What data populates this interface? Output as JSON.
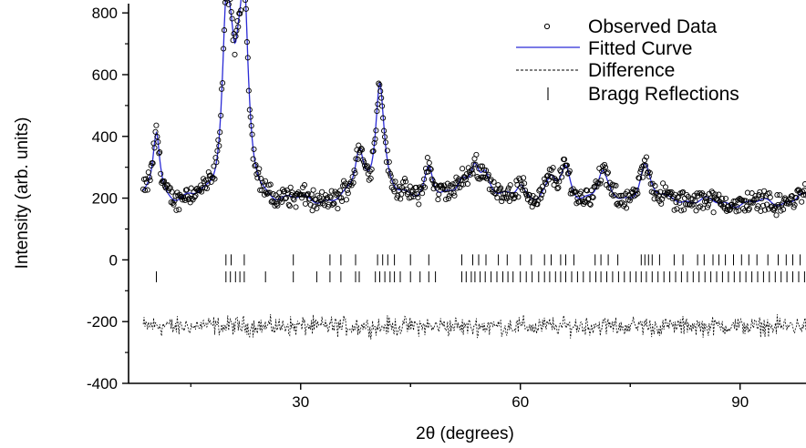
{
  "chart_data": {
    "type": "scatter",
    "xlabel": "2θ (degrees)",
    "ylabel": "Intensity (arb. units)",
    "xlim": [
      6.5,
      99
    ],
    "ylim": [
      -400,
      830
    ],
    "x_ticks": [
      30,
      60,
      90
    ],
    "x_tick_labels": [
      "30",
      "60",
      "90"
    ],
    "y_ticks": [
      -400,
      -200,
      0,
      200,
      400,
      600,
      800
    ],
    "y_tick_labels": [
      "-400",
      "-200",
      "0",
      "200",
      "400",
      "600",
      "800"
    ],
    "grid": false,
    "legend_position": "top-right",
    "legend": [
      {
        "label": "Observed Data",
        "marker": "open-circle"
      },
      {
        "label": "Fitted Curve",
        "marker": "line",
        "color": "#2b2bd6"
      },
      {
        "label": "Difference",
        "marker": "dashed-line"
      },
      {
        "label": "Bragg Reflections",
        "marker": "vertical-tick"
      }
    ],
    "pattern": {
      "x_start": 8.5,
      "x_end": 99,
      "background": 185,
      "peaks": [
        {
          "two_theta": 10.3,
          "intensity": 410
        },
        {
          "two_theta": 19.8,
          "intensity": 680
        },
        {
          "two_theta": 20.5,
          "intensity": 450
        },
        {
          "two_theta": 21.5,
          "intensity": 410
        },
        {
          "two_theta": 22.3,
          "intensity": 760
        },
        {
          "two_theta": 38.0,
          "intensity": 335
        },
        {
          "two_theta": 40.8,
          "intensity": 570
        },
        {
          "two_theta": 47.5,
          "intensity": 300
        },
        {
          "two_theta": 52.0,
          "intensity": 235
        },
        {
          "two_theta": 53.8,
          "intensity": 300
        },
        {
          "two_theta": 55.2,
          "intensity": 255
        },
        {
          "two_theta": 60.0,
          "intensity": 240
        },
        {
          "two_theta": 64.2,
          "intensity": 245
        },
        {
          "two_theta": 66.2,
          "intensity": 285
        },
        {
          "two_theta": 71.2,
          "intensity": 270
        },
        {
          "two_theta": 77.0,
          "intensity": 300
        },
        {
          "two_theta": 81.0,
          "intensity": 200
        },
        {
          "two_theta": 91.0,
          "intensity": 180
        },
        {
          "two_theta": 98.2,
          "intensity": 210
        }
      ],
      "difference_offset": -215
    },
    "bragg_reflections": [
      {
        "phase": 1,
        "y": 0,
        "positions": [
          19.8,
          20.5,
          22.3,
          29.0,
          34.0,
          35.5,
          37.5,
          40.5,
          41.2,
          41.9,
          42.8,
          45.0,
          47.5,
          52.0,
          53.5,
          54.3,
          55.3,
          57.0,
          58.2,
          60.0,
          61.5,
          63.3,
          64.2,
          65.5,
          66.2,
          67.3,
          70.2,
          71.0,
          72.0,
          73.3,
          76.5,
          77.0,
          77.5,
          78.0,
          79.0,
          81.0,
          82.2,
          84.2,
          85.1,
          86.3,
          87.1,
          88.0,
          89.1,
          90.2,
          91.2,
          92.3,
          93.8,
          95.2,
          96.3,
          97.2,
          98.2
        ]
      },
      {
        "phase": 2,
        "y": -55,
        "positions": [
          10.3,
          19.8,
          20.4,
          21.1,
          21.7,
          22.3,
          25.2,
          29.0,
          32.2,
          34.0,
          35.5,
          37.5,
          38.0,
          40.2,
          40.8,
          41.5,
          42.2,
          42.8,
          43.6,
          45.0,
          46.3,
          47.5,
          48.4,
          52.0,
          52.6,
          53.3,
          53.8,
          54.5,
          55.2,
          56.0,
          56.8,
          57.6,
          58.3,
          59.0,
          60.0,
          60.8,
          61.6,
          62.5,
          63.3,
          64.0,
          64.8,
          65.5,
          66.2,
          67.0,
          67.8,
          68.6,
          69.5,
          70.3,
          71.0,
          71.8,
          72.6,
          73.4,
          74.2,
          75.0,
          75.8,
          76.5,
          77.2,
          78.0,
          78.8,
          79.6,
          80.4,
          81.2,
          82.0,
          82.8,
          83.6,
          84.4,
          85.2,
          86.0,
          86.8,
          87.6,
          88.4,
          89.2,
          90.0,
          90.8,
          91.6,
          92.4,
          93.2,
          94.0,
          94.8,
          95.6,
          96.4,
          97.2,
          98.0,
          98.8
        ]
      }
    ]
  }
}
